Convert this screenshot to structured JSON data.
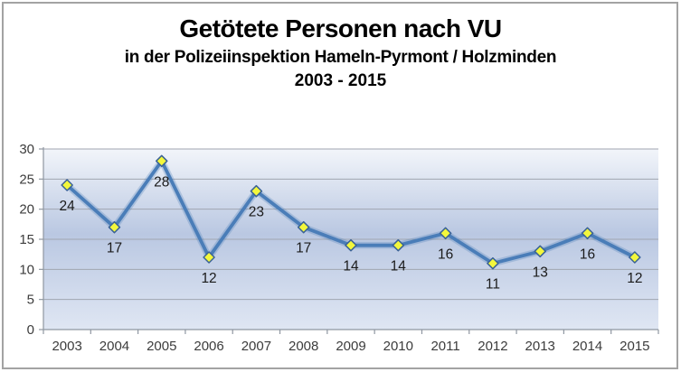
{
  "chart_data": {
    "type": "line",
    "title": "Getötete Personen nach VU",
    "subtitle": "in der Polizeiinspektion Hameln-Pyrmont / Holzminden",
    "period": "2003 - 2015",
    "categories": [
      "2003",
      "2004",
      "2005",
      "2006",
      "2007",
      "2008",
      "2009",
      "2010",
      "2011",
      "2012",
      "2013",
      "2014",
      "2015"
    ],
    "values": [
      24,
      17,
      28,
      12,
      23,
      17,
      14,
      14,
      16,
      11,
      13,
      16,
      12
    ],
    "data_labels": true,
    "ylim": [
      0,
      30
    ],
    "yticks": [
      0,
      5,
      10,
      15,
      20,
      25,
      30
    ],
    "grid": true,
    "legend": "none",
    "marker_shape": "diamond",
    "colors": {
      "line": "#4a7db8",
      "line_halo": "rgba(74,125,184,0.28)",
      "marker_fill": "#f3f73c",
      "marker_stroke": "#3a6296",
      "gridline": "#a0a6b0",
      "axis": "#8f97a1",
      "label_text": "#1a1a1a",
      "axis_text": "#3c3c3c",
      "plot_bg_top": "#f2f5fa",
      "plot_bg_mid": "#bac8e2",
      "plot_bg_bottom": "#dfe6f3",
      "frame_border": "#a3a3a3"
    }
  }
}
